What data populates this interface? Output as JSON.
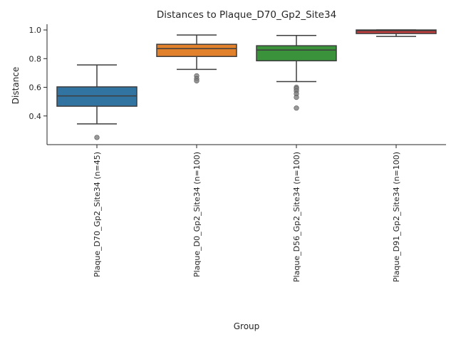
{
  "chart_data": {
    "type": "box",
    "title": "Distances to Plaque_D70_Gp2_Site34",
    "xlabel": "Group",
    "ylabel": "Distance",
    "ylim": [
      0.2,
      1.04
    ],
    "yticks": [
      0.4,
      0.6,
      0.8,
      1.0
    ],
    "ytick_labels": [
      "0.4",
      "0.6",
      "0.8",
      "1.0"
    ],
    "grid": false,
    "categories": [
      "Plaque_D70_Gp2_Site34 (n=45)",
      "Plaque_D0_Gp2_Site34 (n=100)",
      "Plaque_D56_Gp2_Site34 (n=100)",
      "Plaque_D91_Gp2_Site34 (n=100)"
    ],
    "boxes": [
      {
        "color": "#3274a1",
        "whislo": 0.345,
        "q1": 0.468,
        "med": 0.54,
        "q3": 0.603,
        "whishi": 0.756,
        "fliers": [
          0.25
        ]
      },
      {
        "color": "#e1812c",
        "whislo": 0.725,
        "q1": 0.815,
        "med": 0.87,
        "q3": 0.9,
        "whishi": 0.965,
        "fliers": [
          0.68,
          0.66,
          0.645
        ]
      },
      {
        "color": "#3a923a",
        "whislo": 0.64,
        "q1": 0.785,
        "med": 0.86,
        "q3": 0.89,
        "whishi": 0.962,
        "fliers": [
          0.6,
          0.59,
          0.575,
          0.555,
          0.53,
          0.455
        ]
      },
      {
        "color": "#c03d3e",
        "whislo": 0.955,
        "q1": 0.975,
        "med": 0.995,
        "q3": 1.0,
        "whishi": 1.0,
        "fliers": []
      }
    ]
  }
}
